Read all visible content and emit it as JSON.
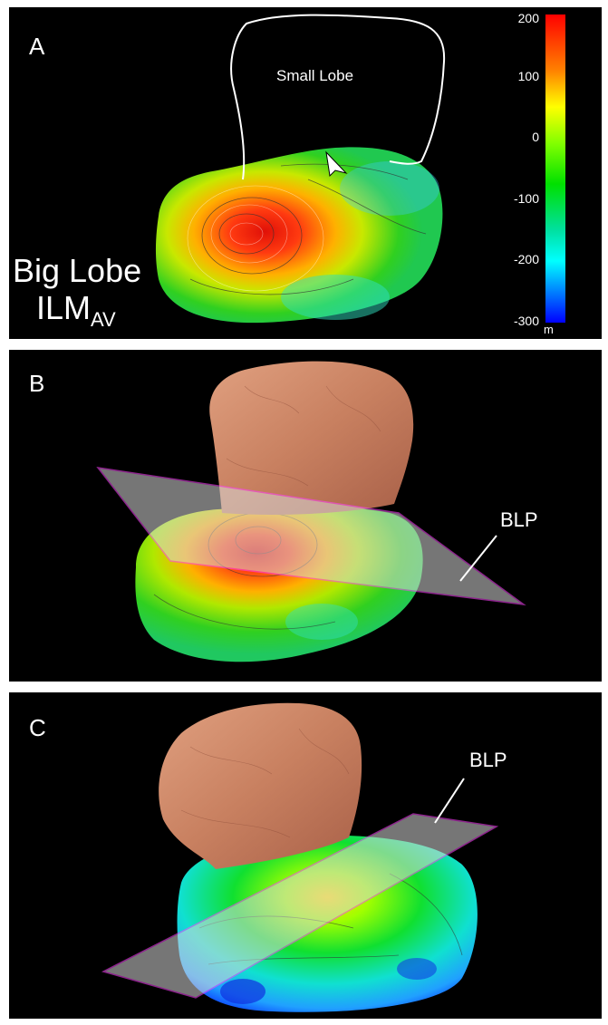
{
  "panels": [
    {
      "label": "A",
      "small_lobe_label": "Small Lobe",
      "big_lobe_label": "Big Lobe",
      "ilm_main": "ILM",
      "ilm_sub": "AV"
    },
    {
      "label": "B",
      "plane_label": "BLP"
    },
    {
      "label": "C",
      "plane_label": "BLP"
    }
  ],
  "colorbar": {
    "ticks": [
      "200",
      "100",
      "0",
      "-100",
      "-200",
      "-300"
    ],
    "unit": "m",
    "colors": [
      "#ff0000",
      "#ffa000",
      "#ffff00",
      "#00e000",
      "#00ffff",
      "#0000ff"
    ]
  }
}
